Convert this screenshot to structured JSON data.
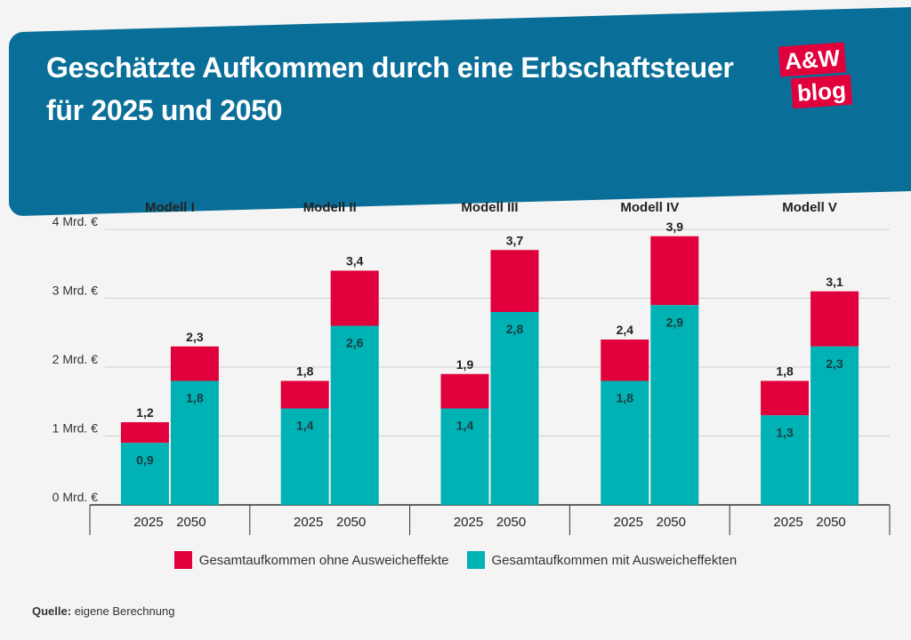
{
  "header": {
    "title": "Geschätzte Aufkommen durch eine Erbschaftsteuer für 2025 und 2050",
    "logo_top": "A&W",
    "logo_bottom": "blog"
  },
  "colors": {
    "banner": "#0a6f98",
    "red": "#e1003b",
    "teal": "#00b2b4"
  },
  "chart_data": {
    "type": "bar",
    "stacked": true,
    "groups": [
      "Modell I",
      "Modell II",
      "Modell III",
      "Modell IV",
      "Modell V"
    ],
    "categories": [
      "2025",
      "2050"
    ],
    "series": [
      {
        "name": "Gesamtaufkommen mit Ausweicheffekten",
        "color": "#00b2b4",
        "values": [
          [
            0.9,
            1.8
          ],
          [
            1.4,
            2.6
          ],
          [
            1.4,
            2.8
          ],
          [
            1.8,
            2.9
          ],
          [
            1.3,
            2.3
          ]
        ],
        "labels": [
          [
            "0,9",
            "1,8"
          ],
          [
            "1,4",
            "2,6"
          ],
          [
            "1,4",
            "2,8"
          ],
          [
            "1,8",
            "2,9"
          ],
          [
            "1,3",
            "2,3"
          ]
        ]
      },
      {
        "name": "Gesamtaufkommen ohne Ausweicheffekte",
        "color": "#e1003b",
        "values": [
          [
            1.2,
            2.3
          ],
          [
            1.8,
            3.4
          ],
          [
            1.9,
            3.7
          ],
          [
            2.4,
            3.9
          ],
          [
            1.8,
            3.1
          ]
        ],
        "labels": [
          [
            "1,2",
            "2,3"
          ],
          [
            "1,8",
            "3,4"
          ],
          [
            "1,9",
            "3,7"
          ],
          [
            "2,4",
            "3,9"
          ],
          [
            "1,8",
            "3,1"
          ]
        ]
      }
    ],
    "yticks": [
      0,
      1,
      2,
      3,
      4
    ],
    "ytick_labels": [
      "0 Mrd. €",
      "1 Mrd. €",
      "2 Mrd. €",
      "3 Mrd. €",
      "4 Mrd. €"
    ],
    "ylim": [
      0,
      4
    ],
    "xlabel": "",
    "ylabel": "",
    "legend": [
      {
        "label": "Gesamtaufkommen ohne Ausweicheffekte",
        "color": "#e1003b"
      },
      {
        "label": "Gesamtaufkommen mit Ausweicheffekten",
        "color": "#00b2b4"
      }
    ]
  },
  "source": {
    "label": "Quelle:",
    "text": " eigene Berechnung"
  }
}
